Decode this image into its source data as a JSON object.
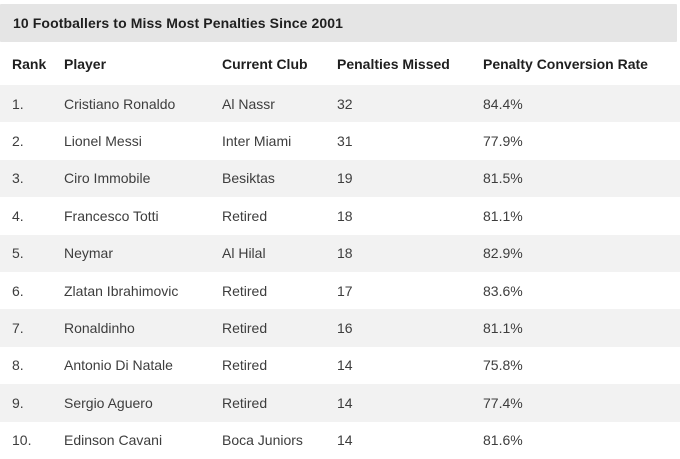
{
  "title": "10 Footballers to Miss Most Penalties Since 2001",
  "colors": {
    "title_bar_bg": "#e5e5e5",
    "stripe_bg": "#f2f2f2",
    "header_text": "#1f1f1f",
    "body_text": "#3d3d3d",
    "page_bg": "#ffffff"
  },
  "chart_data": {
    "type": "table",
    "title": "10 Footballers to Miss Most Penalties Since 2001",
    "columns": [
      "Rank",
      "Player",
      "Current Club",
      "Penalties Missed",
      "Penalty Conversion Rate"
    ],
    "rows": [
      {
        "rank": "1.",
        "player": "Cristiano Ronaldo",
        "club": "Al Nassr",
        "missed": "32",
        "conversion": "84.4%"
      },
      {
        "rank": "2.",
        "player": "Lionel Messi",
        "club": "Inter Miami",
        "missed": "31",
        "conversion": "77.9%"
      },
      {
        "rank": "3.",
        "player": "Ciro Immobile",
        "club": "Besiktas",
        "missed": "19",
        "conversion": "81.5%"
      },
      {
        "rank": "4.",
        "player": "Francesco Totti",
        "club": "Retired",
        "missed": "18",
        "conversion": "81.1%"
      },
      {
        "rank": "5.",
        "player": "Neymar",
        "club": "Al Hilal",
        "missed": "18",
        "conversion": "82.9%"
      },
      {
        "rank": "6.",
        "player": "Zlatan Ibrahimovic",
        "club": "Retired",
        "missed": "17",
        "conversion": "83.6%"
      },
      {
        "rank": "7.",
        "player": "Ronaldinho",
        "club": "Retired",
        "missed": "16",
        "conversion": "81.1%"
      },
      {
        "rank": "8.",
        "player": "Antonio Di Natale",
        "club": "Retired",
        "missed": "14",
        "conversion": "75.8%"
      },
      {
        "rank": "9.",
        "player": "Sergio Aguero",
        "club": "Retired",
        "missed": "14",
        "conversion": "77.4%"
      },
      {
        "rank": "10.",
        "player": "Edinson Cavani",
        "club": "Boca Juniors",
        "missed": "14",
        "conversion": "81.6%"
      }
    ]
  }
}
